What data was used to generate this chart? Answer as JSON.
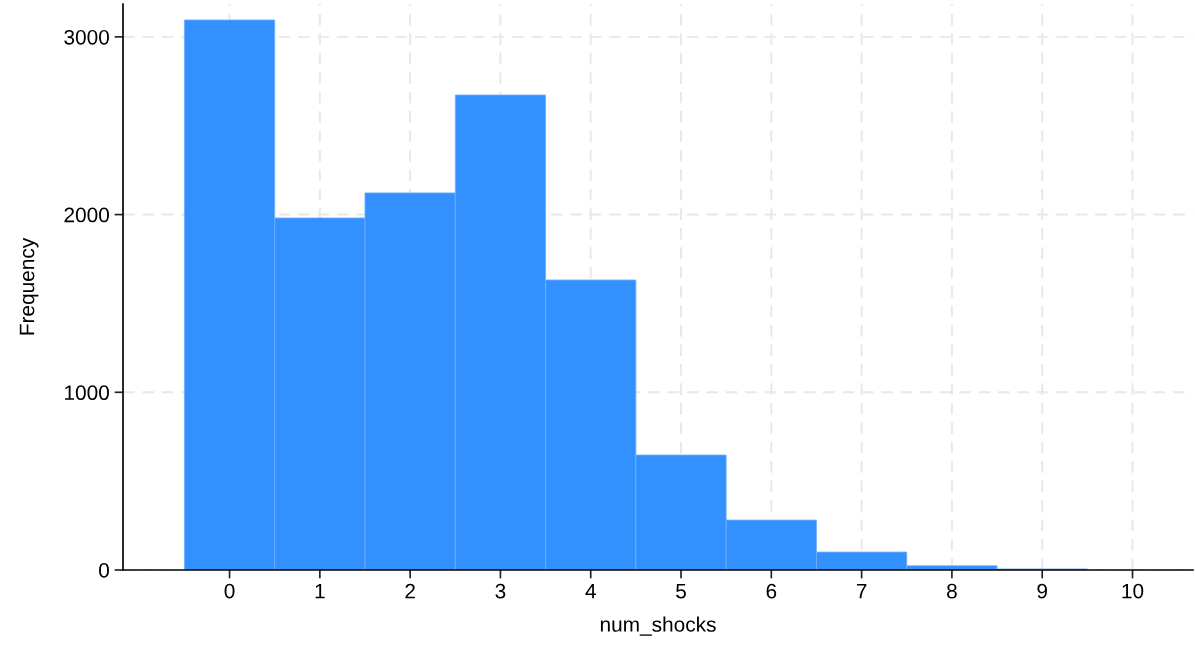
{
  "chart_data": {
    "type": "histogram",
    "xlabel": "num_shocks",
    "ylabel": "Frequency",
    "bins": [
      -0.5,
      0.5,
      1.5,
      2.5,
      3.5,
      4.5,
      5.5,
      6.5,
      7.5,
      8.5,
      9.5,
      10.5
    ],
    "values": [
      3095,
      1981,
      2122,
      2673,
      1632,
      647,
      281,
      101,
      24,
      6,
      null
    ],
    "color": "#3390ff",
    "xlim": [
      -1.18,
      10.67
    ],
    "xticks": [
      0,
      1,
      2,
      3,
      4,
      5,
      6,
      7,
      8,
      9,
      10
    ],
    "ylim": [
      0,
      3185
    ],
    "yticks": [
      0,
      1000,
      2000,
      3000
    ],
    "grid": true
  }
}
